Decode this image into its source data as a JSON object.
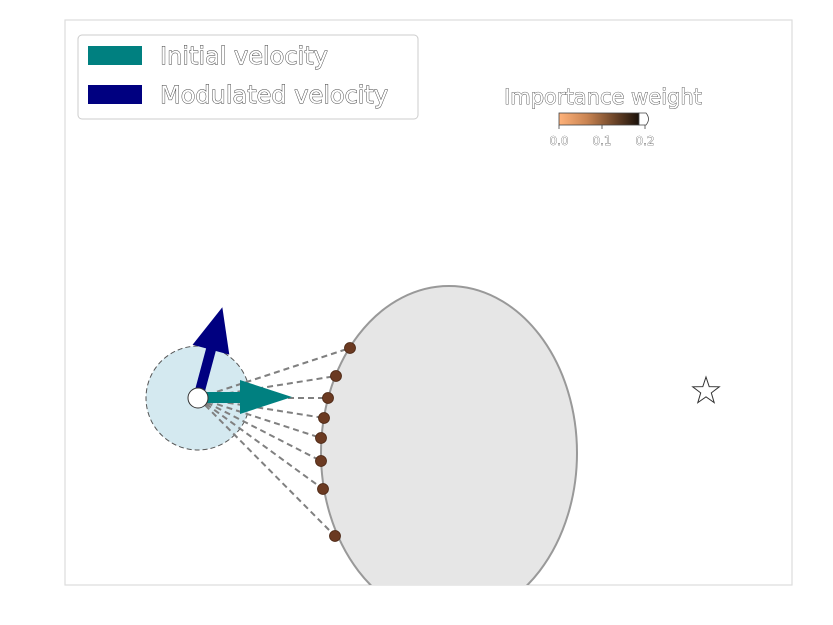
{
  "legend": {
    "initial_label": "Initial velocity",
    "modulated_label": "Modulated velocity"
  },
  "colorbar": {
    "title": "Importance weight",
    "ticks": [
      "0.0",
      "0.1",
      "0.2"
    ]
  },
  "colors": {
    "initial_velocity": "#008080",
    "modulated_velocity": "#000080",
    "agent_region": "#d4e9f0",
    "obstacle_fill": "#e6e6e6",
    "obstacle_edge": "#999999",
    "sample_point": "#6b3a22",
    "ray": "#808080"
  },
  "icons": {
    "goal": "star-icon"
  },
  "sample_points": 8
}
